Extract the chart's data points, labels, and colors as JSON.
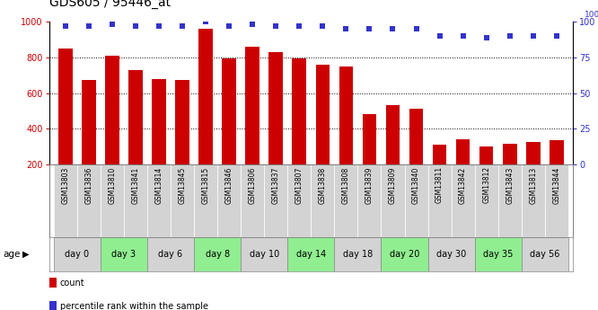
{
  "title": "GDS605 / 95446_at",
  "samples": [
    "GSM13803",
    "GSM13836",
    "GSM13810",
    "GSM13841",
    "GSM13814",
    "GSM13845",
    "GSM13815",
    "GSM13846",
    "GSM13806",
    "GSM13837",
    "GSM13807",
    "GSM13838",
    "GSM13808",
    "GSM13839",
    "GSM13809",
    "GSM13840",
    "GSM13811",
    "GSM13842",
    "GSM13812",
    "GSM13843",
    "GSM13813",
    "GSM13844"
  ],
  "bar_values": [
    850,
    675,
    810,
    730,
    680,
    675,
    960,
    795,
    860,
    830,
    795,
    760,
    750,
    480,
    530,
    510,
    310,
    340,
    300,
    315,
    325,
    335
  ],
  "percentile_values": [
    97,
    97,
    98,
    97,
    97,
    97,
    100,
    97,
    98,
    97,
    97,
    97,
    95,
    95,
    95,
    95,
    90,
    90,
    89,
    90,
    90,
    90
  ],
  "age_groups": [
    {
      "label": "day 0",
      "start": 0,
      "end": 2,
      "color": "#d3d3d3"
    },
    {
      "label": "day 3",
      "start": 2,
      "end": 4,
      "color": "#90ee90"
    },
    {
      "label": "day 6",
      "start": 4,
      "end": 6,
      "color": "#d3d3d3"
    },
    {
      "label": "day 8",
      "start": 6,
      "end": 8,
      "color": "#90ee90"
    },
    {
      "label": "day 10",
      "start": 8,
      "end": 10,
      "color": "#d3d3d3"
    },
    {
      "label": "day 14",
      "start": 10,
      "end": 12,
      "color": "#90ee90"
    },
    {
      "label": "day 18",
      "start": 12,
      "end": 14,
      "color": "#d3d3d3"
    },
    {
      "label": "day 20",
      "start": 14,
      "end": 16,
      "color": "#90ee90"
    },
    {
      "label": "day 30",
      "start": 16,
      "end": 18,
      "color": "#d3d3d3"
    },
    {
      "label": "day 35",
      "start": 18,
      "end": 20,
      "color": "#90ee90"
    },
    {
      "label": "day 56",
      "start": 20,
      "end": 22,
      "color": "#d3d3d3"
    }
  ],
  "bar_color": "#cc0000",
  "dot_color": "#3333cc",
  "ylim_left": [
    200,
    1000
  ],
  "ylim_right": [
    0,
    100
  ],
  "yticks_left": [
    200,
    400,
    600,
    800,
    1000
  ],
  "yticks_right": [
    0,
    25,
    50,
    75,
    100
  ],
  "grid_yticks": [
    400,
    600,
    800
  ],
  "sample_cell_color": "#d3d3d3",
  "legend_items": [
    {
      "label": "count",
      "color": "#cc0000"
    },
    {
      "label": "percentile rank within the sample",
      "color": "#3333cc"
    }
  ]
}
